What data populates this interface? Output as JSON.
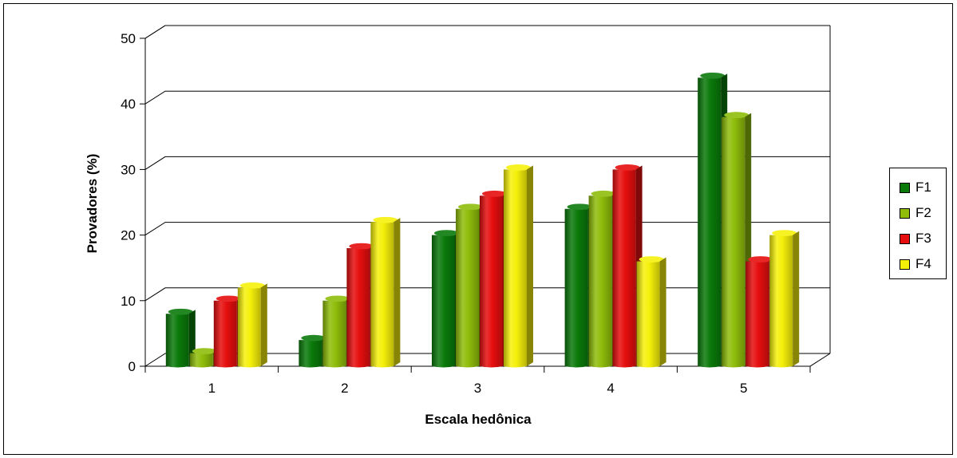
{
  "chart_data": {
    "type": "bar",
    "title": "",
    "xlabel": "Escala hedônica",
    "ylabel": "Provadores (%)",
    "categories": [
      "1",
      "2",
      "3",
      "4",
      "5"
    ],
    "ylim": [
      0,
      50
    ],
    "yticks": [
      "0",
      "10",
      "20",
      "30",
      "40",
      "50"
    ],
    "grid": true,
    "legend_position": "right",
    "series": [
      {
        "name": "F1",
        "color": "#0a7a0a",
        "values": [
          8,
          4,
          20,
          24,
          44
        ]
      },
      {
        "name": "F2",
        "color": "#8fbd0a",
        "values": [
          2,
          10,
          24,
          26,
          38
        ]
      },
      {
        "name": "F3",
        "color": "#e60e0e",
        "values": [
          10,
          18,
          26,
          30,
          16
        ]
      },
      {
        "name": "F4",
        "color": "#f5f00a",
        "values": [
          12,
          22,
          30,
          16,
          20
        ]
      }
    ]
  }
}
